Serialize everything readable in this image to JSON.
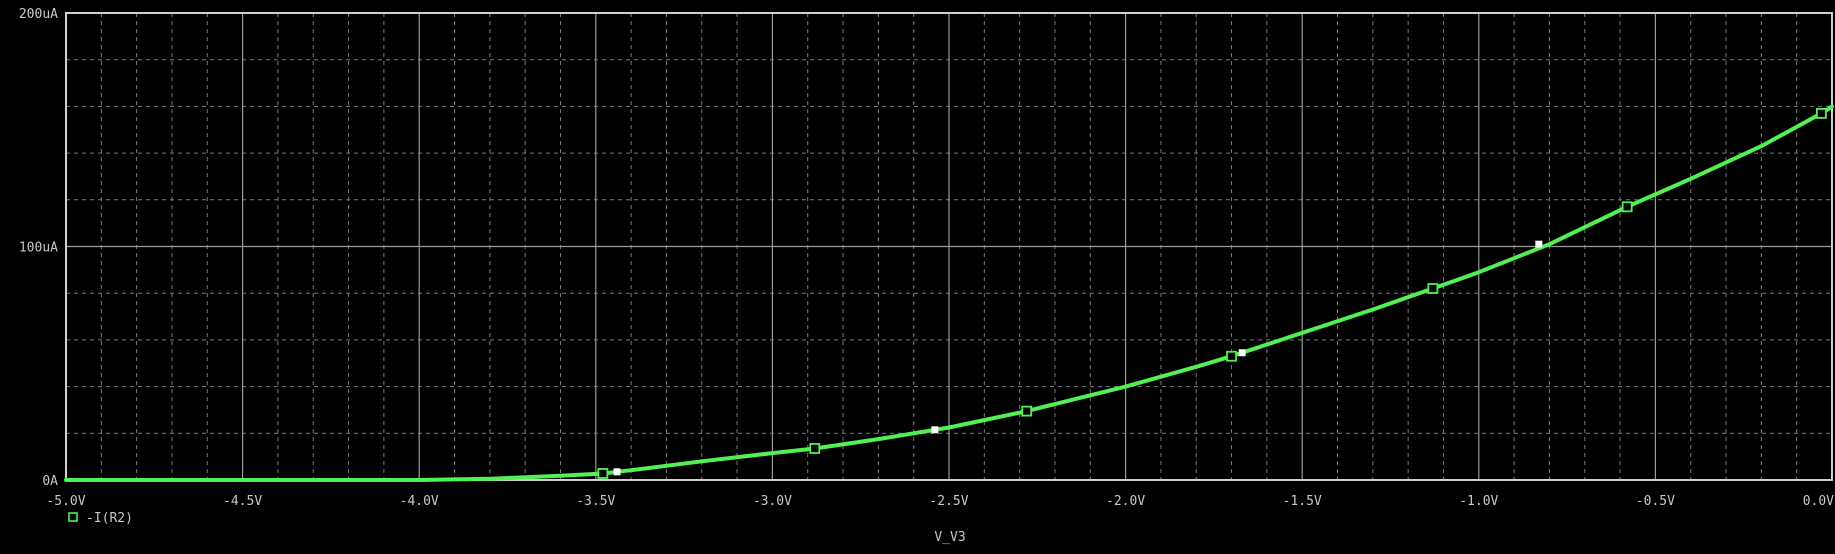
{
  "chart_data": {
    "type": "line",
    "xlabel": "V_V3",
    "ylabel": "",
    "xlim": [
      -5.0,
      0.0
    ],
    "ylim": [
      0,
      200
    ],
    "x_tick_labels": [
      "-5.0V",
      "-4.5V",
      "-4.0V",
      "-3.5V",
      "-3.0V",
      "-2.5V",
      "-2.0V",
      "-1.5V",
      "-1.0V",
      "-0.5V",
      "0.0V"
    ],
    "x_tick_values": [
      -5.0,
      -4.5,
      -4.0,
      -3.5,
      -3.0,
      -2.5,
      -2.0,
      -1.5,
      -1.0,
      -0.5,
      0.0
    ],
    "y_tick_labels": [
      "0A",
      "100uA",
      "200uA"
    ],
    "y_tick_values": [
      0,
      100,
      200
    ],
    "grid": true,
    "legend_position": "bottom-left",
    "colors": {
      "background": "#000000",
      "frame": "#d0d0d0",
      "grid_major": "#9a9a9a",
      "grid_minor": "#7a7a7a",
      "trace": "#52f052",
      "text": "#c8c8c8",
      "cursor_marker": "#ffffff"
    },
    "series": [
      {
        "name": "-I(R2)",
        "marker": "hollow-square",
        "x": [
          -5.0,
          -4.5,
          -4.0,
          -3.8,
          -3.6,
          -3.48,
          -3.4,
          -3.2,
          -3.0,
          -2.88,
          -2.7,
          -2.5,
          -2.28,
          -2.0,
          -1.8,
          -1.7,
          -1.5,
          -1.3,
          -1.13,
          -1.0,
          -0.8,
          -0.58,
          -0.4,
          -0.2,
          -0.03,
          0.0
        ],
        "y": [
          0.0,
          0.0,
          0.0,
          0.5,
          1.8,
          2.8,
          4.2,
          8.0,
          11.5,
          13.5,
          17.5,
          22.5,
          29.5,
          40.0,
          48.5,
          53.0,
          63.0,
          73.0,
          82.0,
          89.0,
          101.0,
          117.0,
          129.0,
          143.0,
          157.0,
          160.0
        ]
      }
    ],
    "trace_markers": [
      {
        "x": -3.48,
        "y": 2.8
      },
      {
        "x": -2.88,
        "y": 13.5
      },
      {
        "x": -2.28,
        "y": 29.5
      },
      {
        "x": -1.7,
        "y": 53.0
      },
      {
        "x": -1.13,
        "y": 82.0
      },
      {
        "x": -0.58,
        "y": 117.0
      },
      {
        "x": -0.03,
        "y": 157.0
      }
    ],
    "cursor_points": [
      {
        "x": -3.44,
        "y": 3.5
      },
      {
        "x": -2.54,
        "y": 21.5
      },
      {
        "x": -1.67,
        "y": 54.5
      },
      {
        "x": -0.83,
        "y": 101.0
      }
    ]
  }
}
